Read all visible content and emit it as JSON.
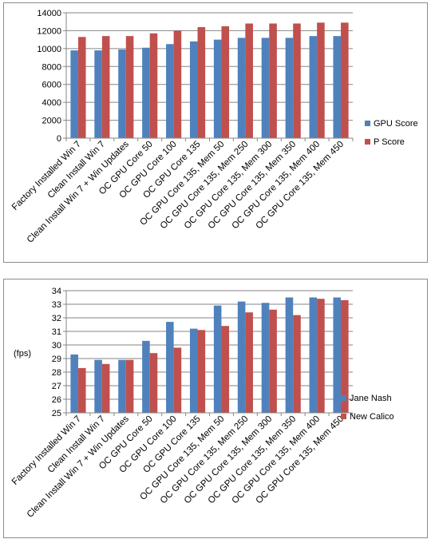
{
  "chart_data": [
    {
      "type": "bar",
      "categories": [
        "Factory Installed Win 7",
        "Clean Install Win 7",
        "Clean Install Win 7 + Win Updates",
        "OC GPU Core 50",
        "OC GPU Core 100",
        "OC GPU Core 135",
        "OC GPU Core 135, Mem 50",
        "OC GPU Core 135, Mem 250",
        "OC GPU Core 135, Mem 300",
        "OC GPU Core 135, Mem 350",
        "OC GPU Core 135, Mem 400",
        "OC GPU Core 135, Mem 450"
      ],
      "series": [
        {
          "name": "GPU Score",
          "color": "#4f81bd",
          "values": [
            9800,
            9800,
            9900,
            10100,
            10500,
            10800,
            11000,
            11200,
            11200,
            11200,
            11400,
            11400
          ]
        },
        {
          "name": "P Score",
          "color": "#c0504d",
          "values": [
            11300,
            11400,
            11400,
            11700,
            12000,
            12400,
            12500,
            12800,
            12800,
            12800,
            12900,
            12900
          ]
        }
      ],
      "ylim": [
        0,
        14000
      ],
      "yticks": [
        "0",
        "2000",
        "4000",
        "6000",
        "8000",
        "10000",
        "12000",
        "14000"
      ],
      "ylabel": "",
      "grid": true,
      "legend": "right"
    },
    {
      "type": "bar",
      "categories": [
        "Factory Installed Win 7",
        "Clean Install Win 7",
        "Clean Install Win 7 + Win Updates",
        "OC GPU Core 50",
        "OC GPU Core 100",
        "OC GPU Core 135",
        "OC GPU Core 135, Mem 50",
        "OC GPU Core 135, Mem 250",
        "OC GPU Core 135, Mem 300",
        "OC GPU Core 135, Mem 350",
        "OC GPU Core 135, Mem 400",
        "OC GPU Core 135, Mem 450"
      ],
      "series": [
        {
          "name": "Jane Nash",
          "color": "#4f81bd",
          "values": [
            29.3,
            28.9,
            28.9,
            30.3,
            31.7,
            31.2,
            32.9,
            33.2,
            33.1,
            33.5,
            33.5,
            33.5
          ]
        },
        {
          "name": "New Calico",
          "color": "#c0504d",
          "values": [
            28.3,
            28.6,
            28.9,
            29.4,
            29.8,
            31.1,
            31.4,
            32.4,
            32.6,
            32.2,
            33.4,
            33.3
          ]
        }
      ],
      "ylim": [
        25,
        34
      ],
      "yticks": [
        "25",
        "26",
        "27",
        "28",
        "29",
        "30",
        "31",
        "32",
        "33",
        "34"
      ],
      "ylabel": "(fps)",
      "grid": true,
      "legend": "right"
    }
  ]
}
